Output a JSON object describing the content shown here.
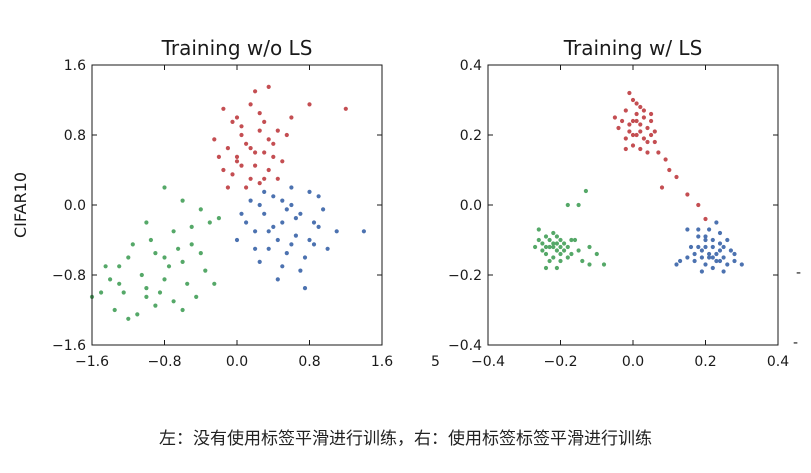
{
  "caption": "左：没有使用标签平滑进行训练，右：使用标签标签平滑进行训练",
  "colors": {
    "red": "#c44e52",
    "blue": "#4c72b0",
    "green": "#55a868"
  },
  "chart_data": [
    {
      "type": "scatter",
      "title": "Training w/o LS",
      "ylabel": "CIFAR10",
      "xlim": [
        -1.6,
        1.6
      ],
      "ylim": [
        -1.6,
        1.6
      ],
      "xticks": [
        "−1.6",
        "−0.8",
        "0.0",
        "0.8",
        "1.6"
      ],
      "yticks": [
        "1.6",
        "0.8",
        "0.0",
        "−0.8",
        "−1.6"
      ],
      "xtick_values": [
        -1.6,
        -0.8,
        0.0,
        0.8,
        1.6
      ],
      "ytick_values": [
        1.6,
        0.8,
        0.0,
        -0.8,
        -1.6
      ],
      "series": [
        {
          "color": "red",
          "points": [
            [
              0.0,
              1.0
            ],
            [
              0.2,
              1.3
            ],
            [
              0.35,
              1.35
            ],
            [
              -0.15,
              1.1
            ],
            [
              0.05,
              0.9
            ],
            [
              0.25,
              1.05
            ],
            [
              0.45,
              0.85
            ],
            [
              0.55,
              0.8
            ],
            [
              0.1,
              0.7
            ],
            [
              -0.1,
              0.65
            ],
            [
              0.3,
              0.6
            ],
            [
              0.4,
              0.7
            ],
            [
              -0.2,
              0.55
            ],
            [
              0.0,
              0.5
            ],
            [
              0.2,
              0.45
            ],
            [
              0.35,
              0.4
            ],
            [
              -0.05,
              0.35
            ],
            [
              0.15,
              0.3
            ],
            [
              0.25,
              0.25
            ],
            [
              -0.15,
              0.4
            ],
            [
              0.5,
              0.5
            ],
            [
              0.05,
              0.8
            ],
            [
              0.3,
              0.95
            ],
            [
              0.15,
              1.15
            ],
            [
              -0.25,
              0.75
            ],
            [
              0.6,
              1.0
            ],
            [
              0.8,
              1.15
            ],
            [
              1.2,
              1.1
            ],
            [
              0.45,
              0.3
            ],
            [
              0.1,
              0.2
            ],
            [
              -0.1,
              0.2
            ],
            [
              0.35,
              0.75
            ],
            [
              0.2,
              0.6
            ],
            [
              0.0,
              0.55
            ],
            [
              0.25,
              0.85
            ],
            [
              -0.05,
              0.95
            ],
            [
              0.4,
              0.55
            ],
            [
              0.15,
              0.65
            ],
            [
              0.05,
              0.45
            ],
            [
              0.3,
              0.3
            ]
          ]
        },
        {
          "color": "blue",
          "points": [
            [
              0.4,
              0.1
            ],
            [
              0.6,
              0.2
            ],
            [
              0.8,
              0.15
            ],
            [
              0.3,
              -0.1
            ],
            [
              0.5,
              -0.2
            ],
            [
              0.7,
              -0.1
            ],
            [
              0.9,
              -0.25
            ],
            [
              0.2,
              -0.3
            ],
            [
              0.45,
              -0.4
            ],
            [
              0.65,
              -0.35
            ],
            [
              0.85,
              -0.45
            ],
            [
              0.1,
              -0.2
            ],
            [
              0.35,
              -0.5
            ],
            [
              0.55,
              -0.55
            ],
            [
              0.75,
              -0.6
            ],
            [
              0.25,
              -0.65
            ],
            [
              0.5,
              -0.7
            ],
            [
              0.7,
              -0.75
            ],
            [
              0.0,
              -0.4
            ],
            [
              0.95,
              -0.05
            ],
            [
              1.1,
              -0.3
            ],
            [
              1.4,
              -0.3
            ],
            [
              0.6,
              0.0
            ],
            [
              0.4,
              -0.25
            ],
            [
              0.8,
              -0.4
            ],
            [
              0.3,
              0.15
            ],
            [
              0.15,
              0.05
            ],
            [
              0.65,
              -0.15
            ],
            [
              0.5,
              0.05
            ],
            [
              0.9,
              0.1
            ],
            [
              1.0,
              -0.5
            ],
            [
              0.2,
              -0.5
            ],
            [
              0.45,
              -0.85
            ],
            [
              0.75,
              -0.95
            ],
            [
              0.05,
              -0.1
            ],
            [
              0.6,
              -0.45
            ],
            [
              0.35,
              -0.3
            ],
            [
              0.55,
              -0.05
            ],
            [
              0.85,
              -0.2
            ],
            [
              0.25,
              0.0
            ]
          ]
        },
        {
          "color": "green",
          "points": [
            [
              -0.8,
              0.2
            ],
            [
              -0.6,
              0.05
            ],
            [
              -0.4,
              -0.05
            ],
            [
              -1.0,
              -0.2
            ],
            [
              -0.7,
              -0.3
            ],
            [
              -0.5,
              -0.45
            ],
            [
              -0.9,
              -0.55
            ],
            [
              -1.2,
              -0.6
            ],
            [
              -0.6,
              -0.65
            ],
            [
              -0.35,
              -0.75
            ],
            [
              -1.05,
              -0.8
            ],
            [
              -0.8,
              -0.85
            ],
            [
              -0.55,
              -0.9
            ],
            [
              -1.4,
              -0.85
            ],
            [
              -1.25,
              -1.0
            ],
            [
              -1.0,
              -1.05
            ],
            [
              -0.7,
              -1.1
            ],
            [
              -1.5,
              -1.0
            ],
            [
              -1.6,
              -1.05
            ],
            [
              -1.35,
              -1.2
            ],
            [
              -1.1,
              -1.25
            ],
            [
              -0.85,
              -1.0
            ],
            [
              -0.45,
              -1.05
            ],
            [
              -1.3,
              -0.7
            ],
            [
              -0.95,
              -0.4
            ],
            [
              -0.65,
              -0.5
            ],
            [
              -0.3,
              -0.2
            ],
            [
              -0.2,
              -0.15
            ],
            [
              -1.15,
              -0.45
            ],
            [
              -0.75,
              -0.7
            ],
            [
              -0.5,
              -0.25
            ],
            [
              -1.45,
              -0.7
            ],
            [
              -0.9,
              -1.15
            ],
            [
              -1.2,
              -1.3
            ],
            [
              -0.6,
              -1.2
            ],
            [
              -0.4,
              -0.55
            ],
            [
              -0.25,
              -0.9
            ],
            [
              -1.0,
              -0.95
            ],
            [
              -0.8,
              -0.6
            ],
            [
              -1.3,
              -0.9
            ]
          ]
        }
      ]
    },
    {
      "type": "scatter",
      "title": "Training w/ LS",
      "ylabel": "",
      "xlim": [
        -0.4,
        0.4
      ],
      "ylim": [
        -0.4,
        0.4
      ],
      "xticks": [
        "−0.4",
        "−0.2",
        "0.0",
        "0.2",
        "0.4"
      ],
      "yticks": [
        "0.4",
        "0.2",
        "0.0",
        "−0.2",
        "−0.4"
      ],
      "xtick_values": [
        -0.4,
        -0.2,
        0.0,
        0.2,
        0.4
      ],
      "ytick_values": [
        0.4,
        0.2,
        0.0,
        -0.2,
        -0.4
      ],
      "series": [
        {
          "color": "red",
          "points": [
            [
              -0.01,
              0.32
            ],
            [
              0.0,
              0.3
            ],
            [
              0.02,
              0.28
            ],
            [
              -0.02,
              0.27
            ],
            [
              0.01,
              0.26
            ],
            [
              0.03,
              0.25
            ],
            [
              -0.03,
              0.24
            ],
            [
              0.0,
              0.24
            ],
            [
              0.02,
              0.23
            ],
            [
              0.04,
              0.22
            ],
            [
              -0.01,
              0.21
            ],
            [
              0.01,
              0.2
            ],
            [
              0.03,
              0.19
            ],
            [
              0.05,
              0.2
            ],
            [
              0.06,
              0.18
            ],
            [
              -0.02,
              0.19
            ],
            [
              0.0,
              0.17
            ],
            [
              0.02,
              0.16
            ],
            [
              0.04,
              0.15
            ],
            [
              0.07,
              0.15
            ],
            [
              0.09,
              0.13
            ],
            [
              0.1,
              0.1
            ],
            [
              0.12,
              0.08
            ],
            [
              0.08,
              0.05
            ],
            [
              0.15,
              0.03
            ],
            [
              0.18,
              0.0
            ],
            [
              0.2,
              -0.04
            ],
            [
              -0.04,
              0.22
            ],
            [
              -0.05,
              0.25
            ],
            [
              0.05,
              0.24
            ],
            [
              0.01,
              0.29
            ],
            [
              -0.01,
              0.23
            ],
            [
              0.03,
              0.27
            ],
            [
              0.06,
              0.21
            ],
            [
              -0.02,
              0.16
            ],
            [
              0.0,
              0.2
            ],
            [
              0.02,
              0.21
            ],
            [
              0.04,
              0.18
            ],
            [
              0.05,
              0.26
            ],
            [
              0.01,
              0.24
            ]
          ]
        },
        {
          "color": "blue",
          "points": [
            [
              0.15,
              -0.07
            ],
            [
              0.18,
              -0.09
            ],
            [
              0.2,
              -0.1
            ],
            [
              0.22,
              -0.12
            ],
            [
              0.24,
              -0.11
            ],
            [
              0.19,
              -0.13
            ],
            [
              0.21,
              -0.15
            ],
            [
              0.23,
              -0.14
            ],
            [
              0.25,
              -0.15
            ],
            [
              0.17,
              -0.16
            ],
            [
              0.2,
              -0.17
            ],
            [
              0.22,
              -0.18
            ],
            [
              0.26,
              -0.17
            ],
            [
              0.28,
              -0.16
            ],
            [
              0.3,
              -0.17
            ],
            [
              0.13,
              -0.16
            ],
            [
              0.15,
              -0.15
            ],
            [
              0.18,
              -0.12
            ],
            [
              0.24,
              -0.08
            ],
            [
              0.23,
              -0.05
            ],
            [
              0.21,
              -0.07
            ],
            [
              0.19,
              -0.19
            ],
            [
              0.25,
              -0.19
            ],
            [
              0.27,
              -0.13
            ],
            [
              0.2,
              -0.12
            ],
            [
              0.22,
              -0.1
            ],
            [
              0.24,
              -0.13
            ],
            [
              0.16,
              -0.12
            ],
            [
              0.12,
              -0.17
            ],
            [
              0.26,
              -0.1
            ],
            [
              0.21,
              -0.14
            ],
            [
              0.23,
              -0.16
            ],
            [
              0.19,
              -0.15
            ],
            [
              0.18,
              -0.07
            ],
            [
              0.25,
              -0.12
            ],
            [
              0.2,
              -0.09
            ],
            [
              0.24,
              -0.16
            ],
            [
              0.22,
              -0.15
            ],
            [
              0.17,
              -0.14
            ],
            [
              0.28,
              -0.14
            ]
          ]
        },
        {
          "color": "green",
          "points": [
            [
              -0.26,
              -0.07
            ],
            [
              -0.24,
              -0.09
            ],
            [
              -0.22,
              -0.08
            ],
            [
              -0.2,
              -0.1
            ],
            [
              -0.25,
              -0.11
            ],
            [
              -0.23,
              -0.12
            ],
            [
              -0.21,
              -0.13
            ],
            [
              -0.19,
              -0.11
            ],
            [
              -0.27,
              -0.12
            ],
            [
              -0.24,
              -0.14
            ],
            [
              -0.22,
              -0.15
            ],
            [
              -0.2,
              -0.16
            ],
            [
              -0.18,
              -0.12
            ],
            [
              -0.16,
              -0.1
            ],
            [
              -0.17,
              -0.14
            ],
            [
              -0.15,
              -0.13
            ],
            [
              -0.12,
              -0.12
            ],
            [
              -0.13,
              0.04
            ],
            [
              -0.15,
              0.0
            ],
            [
              -0.18,
              0.0
            ],
            [
              -0.21,
              -0.18
            ],
            [
              -0.24,
              -0.18
            ],
            [
              -0.1,
              -0.14
            ],
            [
              -0.08,
              -0.17
            ],
            [
              -0.12,
              -0.17
            ],
            [
              -0.23,
              -0.1
            ],
            [
              -0.21,
              -0.11
            ],
            [
              -0.19,
              -0.13
            ],
            [
              -0.22,
              -0.12
            ],
            [
              -0.25,
              -0.13
            ],
            [
              -0.2,
              -0.12
            ],
            [
              -0.18,
              -0.15
            ],
            [
              -0.23,
              -0.16
            ],
            [
              -0.26,
              -0.1
            ],
            [
              -0.21,
              -0.09
            ],
            [
              -0.2,
              -0.14
            ],
            [
              -0.17,
              -0.1
            ],
            [
              -0.14,
              -0.16
            ],
            [
              -0.22,
              -0.11
            ],
            [
              -0.24,
              -0.12
            ]
          ]
        }
      ]
    }
  ]
}
